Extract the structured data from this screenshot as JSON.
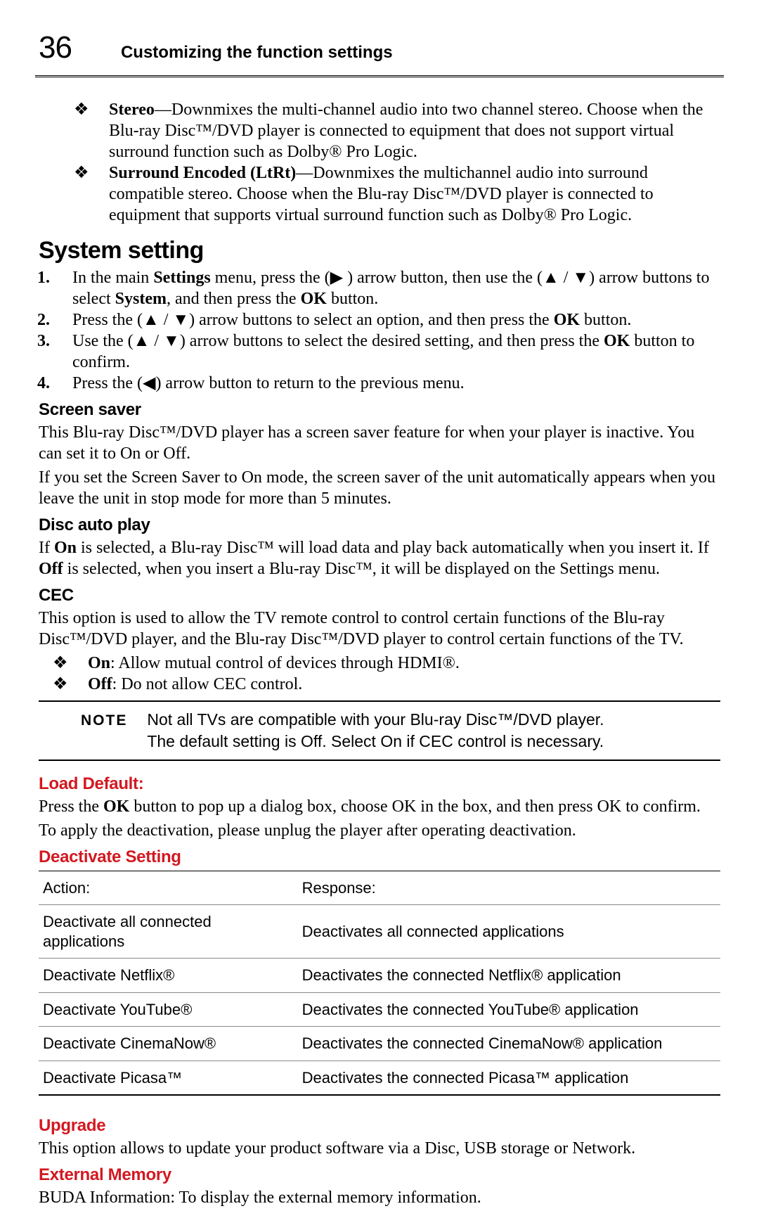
{
  "header": {
    "page_number": "36",
    "chapter_title": "Customizing the function settings"
  },
  "bullets_top": [
    {
      "lead": "Stereo",
      "body": "—Downmixes the multi-channel audio into two channel stereo. Choose when the Blu-ray Disc™/DVD player is connected to equipment that does not support virtual surround function such as Dolby® Pro Logic."
    },
    {
      "lead": "Surround Encoded (LtRt)",
      "body": "—Downmixes the multichannel audio into surround compatible stereo. Choose when the Blu-ray Disc™/DVD player is connected to equipment that supports virtual surround function such as Dolby® Pro Logic."
    }
  ],
  "system_setting": {
    "title": "System setting",
    "steps": [
      "In the main |b|Settings|/b| menu, press the (▶ ) arrow button, then use the (▲ / ▼) arrow buttons to select |b|System|/b|, and then press the |b|OK|/b| button.",
      "Press the (▲ / ▼) arrow buttons to select an option, and then press the |b|OK|/b| button.",
      "Use the (▲ / ▼) arrow buttons to select the desired setting, and then press the |b|OK|/b| button to confirm.",
      "Press the (◀) arrow button to return to the previous menu."
    ]
  },
  "screen_saver": {
    "title": "Screen saver",
    "p1": "This Blu-ray Disc™/DVD player has a screen saver feature for when your player is inactive. You can set it to On or Off.",
    "p2": "If you set the Screen Saver to On mode, the screen saver of the unit automatically appears when you leave the unit in stop mode for more than 5 minutes."
  },
  "disc_auto_play": {
    "title": "Disc auto play",
    "p1": "If |b|On|/b| is selected, a Blu-ray Disc™ will load data and play back automatically when you insert it. If |b|Off|/b| is selected, when you insert a Blu-ray Disc™, it will be displayed on the Settings menu."
  },
  "cec": {
    "title": "CEC",
    "p1": "This option is used to allow the TV remote control to control certain functions of the Blu-ray Disc™/DVD player, and the Blu-ray Disc™/DVD player to control certain functions of the TV.",
    "bullets": [
      {
        "lead": "On",
        "body": ": Allow mutual control of devices through HDMI®."
      },
      {
        "lead": "Off",
        "body": ": Do not allow CEC control."
      }
    ]
  },
  "note": {
    "label": "NOTE",
    "line1": "Not all TVs are compatible with your Blu-ray Disc™/DVD player.",
    "line2": "The default setting is Off. Select On if CEC control is necessary."
  },
  "load_default": {
    "title": "Load Default:",
    "p1": "Press the |b|OK|/b| button to pop up a dialog box, choose OK in the box, and then press OK to confirm.",
    "p2": "To apply the deactivation, please unplug the player after operating deactivation."
  },
  "deactivate": {
    "title": "Deactivate Setting",
    "columns": [
      "Action:",
      "Response:"
    ],
    "rows": [
      [
        "Deactivate all connected applications",
        "Deactivates all connected applications"
      ],
      [
        "Deactivate Netflix®",
        "Deactivates the connected Netflix® application"
      ],
      [
        "Deactivate YouTube®",
        "Deactivates the connected YouTube® application"
      ],
      [
        "Deactivate CinemaNow®",
        "Deactivates the connected CinemaNow® application"
      ],
      [
        "Deactivate Picasa™",
        "Deactivates the connected Picasa™ application"
      ]
    ]
  },
  "upgrade": {
    "title": "Upgrade",
    "p1": "This option allows to update your product software via a Disc, USB storage or Network."
  },
  "external_memory": {
    "title": "External Memory",
    "p1": "BUDA Information: To display the external memory information."
  }
}
